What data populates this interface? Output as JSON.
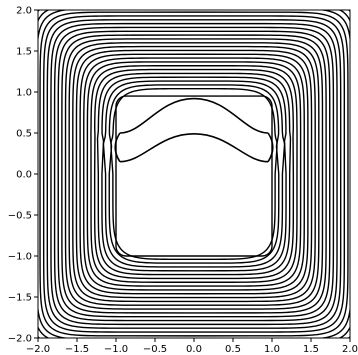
{
  "chart_data": {
    "type": "contour",
    "title": "",
    "xlabel": "",
    "ylabel": "",
    "xlim": [
      -2.0,
      2.0
    ],
    "ylim": [
      -2.0,
      2.0
    ],
    "grid": false,
    "legend": "none",
    "line_color": "#000000",
    "xticks": [
      -2.0,
      -1.5,
      -1.0,
      -0.5,
      0.0,
      0.5,
      1.0,
      1.5,
      2.0
    ],
    "xtick_labels": [
      "−2.0",
      "−1.5",
      "−1.0",
      "−0.5",
      "0.0",
      "0.5",
      "1.0",
      "1.5",
      "2.0"
    ],
    "yticks": [
      -2.0,
      -1.5,
      -1.0,
      -0.5,
      0.0,
      0.5,
      1.0,
      1.5,
      2.0
    ],
    "ytick_labels": [
      "−2.0",
      "−1.5",
      "−1.0",
      "−0.5",
      "0.0",
      "0.5",
      "1.0",
      "1.5",
      "2.0"
    ],
    "outer_contours": {
      "count": 30,
      "innermost_half_width": 1.04,
      "spacing": 0.0467,
      "shape": "rounded square"
    },
    "inner_square_contour": {
      "x_range": [
        -1.0,
        1.0
      ],
      "y_range": [
        -1.0,
        0.95
      ]
    },
    "chevron_contours": [
      {
        "peak": [
          0.0,
          0.92
        ],
        "arm_y": 0.5,
        "x_range": [
          -0.95,
          0.95
        ]
      },
      {
        "peak": [
          0.0,
          0.49
        ],
        "arm_y": 0.15,
        "x_range": [
          -0.95,
          0.95
        ]
      }
    ],
    "notch_y": 0.35
  }
}
